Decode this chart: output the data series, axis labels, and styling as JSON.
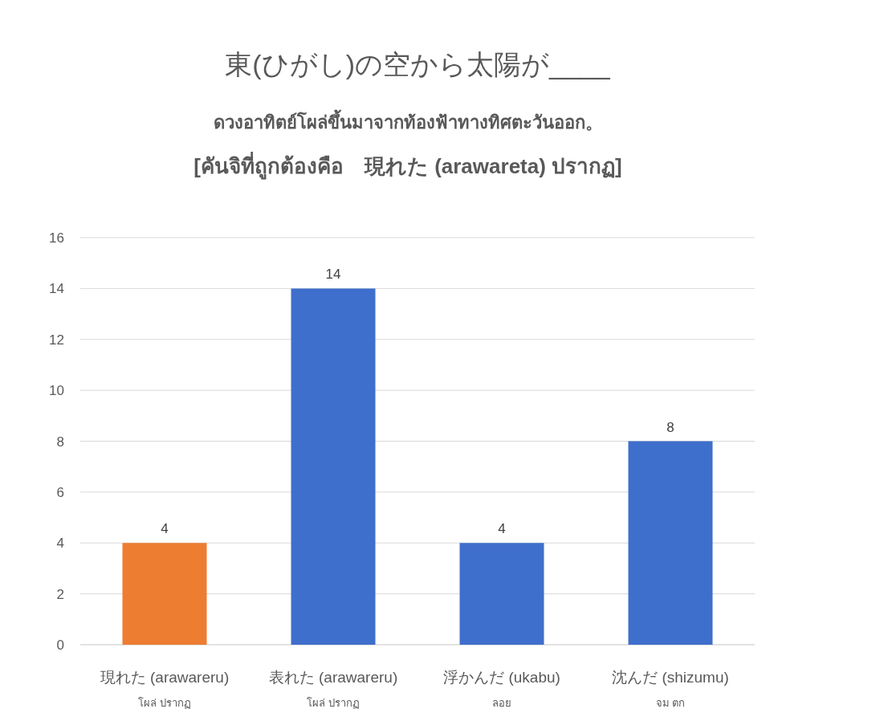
{
  "chart_data": {
    "type": "bar",
    "title": "東(ひがし)の空から太陽が____",
    "subtitle": "ดวงอาทิตย์โผล่ขึ้นมาจากท้องฟ้าทางทิศตะวันออก。\n[คันจิที่ถูกต้องคือ　現れた (arawareta) ปรากฏ]",
    "categories": [
      "現れた (arawareru)\nโผล่ ปรากฏ",
      "表れた  (arawareru)\nโผล่ ปรากฏ",
      "浮かんだ (ukabu)\nลอย",
      "沈んだ (shizumu)\nจม ตก"
    ],
    "values": [
      4,
      14,
      4,
      8
    ],
    "colors": [
      "#ed7d31",
      "#3f6fcc",
      "#3f6fcc",
      "#3f6fcc"
    ],
    "ylim": [
      0,
      16
    ],
    "yticks": [
      0,
      2,
      4,
      6,
      8,
      10,
      12,
      14,
      16
    ],
    "grid": "y",
    "data_labels": true
  }
}
